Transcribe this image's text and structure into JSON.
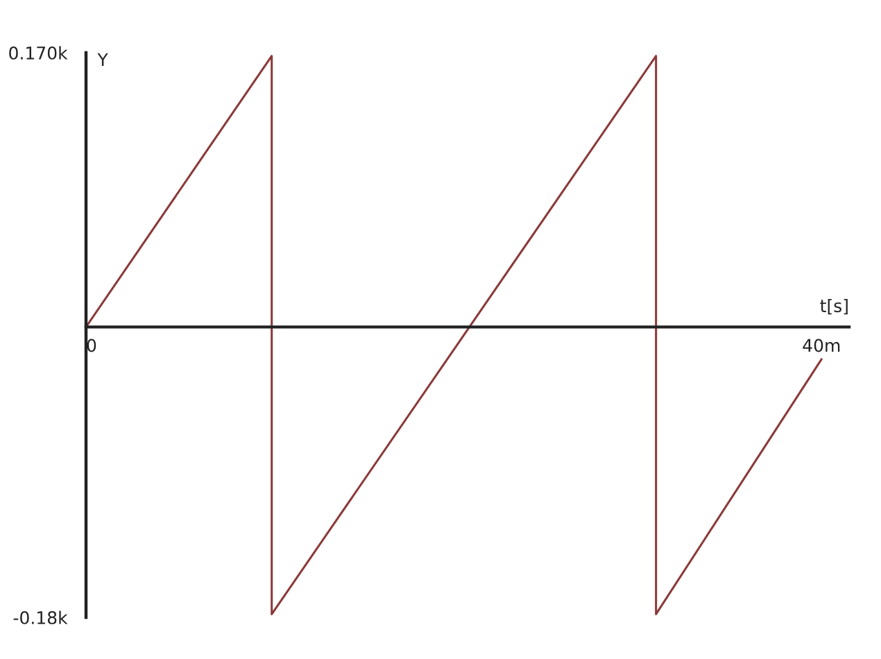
{
  "chart_data": {
    "type": "line",
    "xlabel": "t[s]",
    "ylabel": "Y",
    "x": [
      0,
      10.1,
      10.1,
      31,
      31,
      40
    ],
    "series": [
      {
        "color": "#8b3a3a",
        "values": [
          0,
          168,
          -178,
          168,
          -178,
          -20
        ]
      }
    ],
    "xlim": [
      0,
      41.5
    ],
    "ylim": [
      -180,
      170
    ],
    "xticks": [
      0,
      {
        "value": 40,
        "label": "40m"
      }
    ],
    "yticks": [
      {
        "value": -180,
        "label": "-0.18k"
      },
      {
        "value": 170,
        "label": "0.170k"
      }
    ],
    "grid": false,
    "line_style": "solid"
  }
}
